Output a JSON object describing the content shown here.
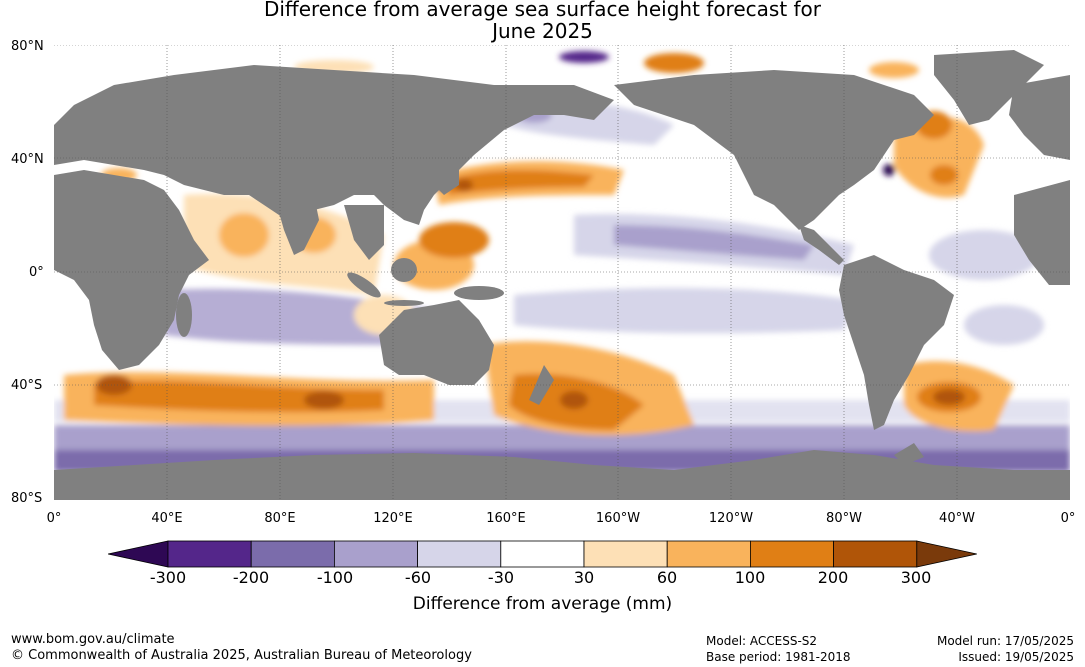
{
  "title": {
    "line1": "Difference from average sea surface height forecast for",
    "line2": "June 2025"
  },
  "lat_labels": [
    "80°N",
    "40°N",
    "0°",
    "40°S",
    "80°S"
  ],
  "lon_labels": [
    "0°",
    "40°E",
    "80°E",
    "120°E",
    "160°E",
    "160°W",
    "120°W",
    "80°W",
    "40°W",
    "0°"
  ],
  "colorbar": {
    "title": "Difference from average (mm)",
    "ticks": [
      "-300",
      "-200",
      "-100",
      "-60",
      "-30",
      "30",
      "60",
      "100",
      "200",
      "300"
    ],
    "colors": [
      "#2e0854",
      "#54268a",
      "#7b6cab",
      "#a9a0cc",
      "#d6d5e9",
      "#ffffff",
      "#fde0b6",
      "#f9b35c",
      "#e07f15",
      "#b05508",
      "#7a3a0b"
    ]
  },
  "colors": {
    "land": "#808080",
    "ocean": "#ffffff",
    "grid": "#555555"
  },
  "footer": {
    "url": "www.bom.gov.au/climate",
    "copyright": "© Commonwealth of Australia 2025, Australian Bureau of Meteorology",
    "model": "Model: ACCESS-S2",
    "base_period": "Base period: 1981-2018",
    "model_run": "Model run: 17/05/2025",
    "issued": "Issued: 19/05/2025"
  }
}
